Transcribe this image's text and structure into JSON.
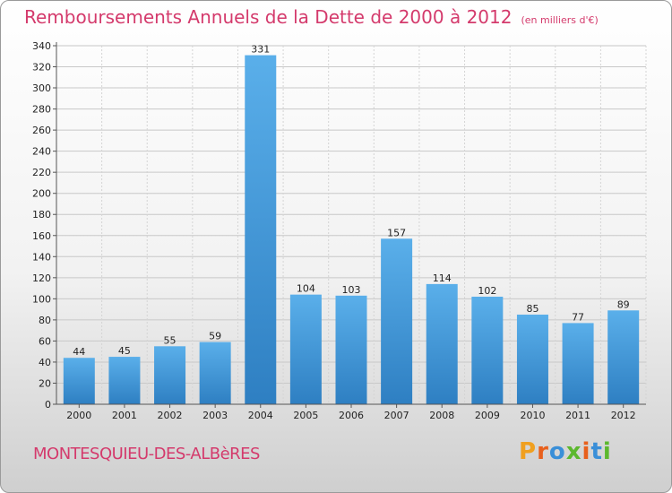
{
  "header": {
    "title": "Remboursements Annuels de la Dette de 2000 à 2012",
    "unit": "(en milliers d'€)"
  },
  "footer": {
    "commune": "MONTESQUIEU-DES-ALBèRES",
    "logo_letters": [
      "P",
      "r",
      "o",
      "x",
      "i",
      "t",
      "i"
    ]
  },
  "colors": {
    "title": "#d43a6c",
    "bar_top": "#5aafea",
    "bar_bottom": "#2e7fc2",
    "logo": [
      "#f0a020",
      "#e8601c",
      "#3a8fd8",
      "#5cb82e",
      "#e8601c",
      "#3a8fd8",
      "#5cb82e"
    ]
  },
  "chart_data": {
    "type": "bar",
    "title": "Remboursements Annuels de la Dette de 2000 à 2012",
    "categories": [
      "2000",
      "2001",
      "2002",
      "2003",
      "2004",
      "2005",
      "2006",
      "2007",
      "2008",
      "2009",
      "2010",
      "2011",
      "2012"
    ],
    "values": [
      44,
      45,
      55,
      59,
      331,
      104,
      103,
      157,
      114,
      102,
      85,
      77,
      89
    ],
    "ylim": [
      0,
      340
    ],
    "yticks": [
      0,
      20,
      40,
      60,
      80,
      100,
      120,
      140,
      160,
      180,
      200,
      220,
      240,
      260,
      280,
      300,
      320,
      340
    ],
    "grid": true,
    "xlabel": "",
    "ylabel": ""
  }
}
